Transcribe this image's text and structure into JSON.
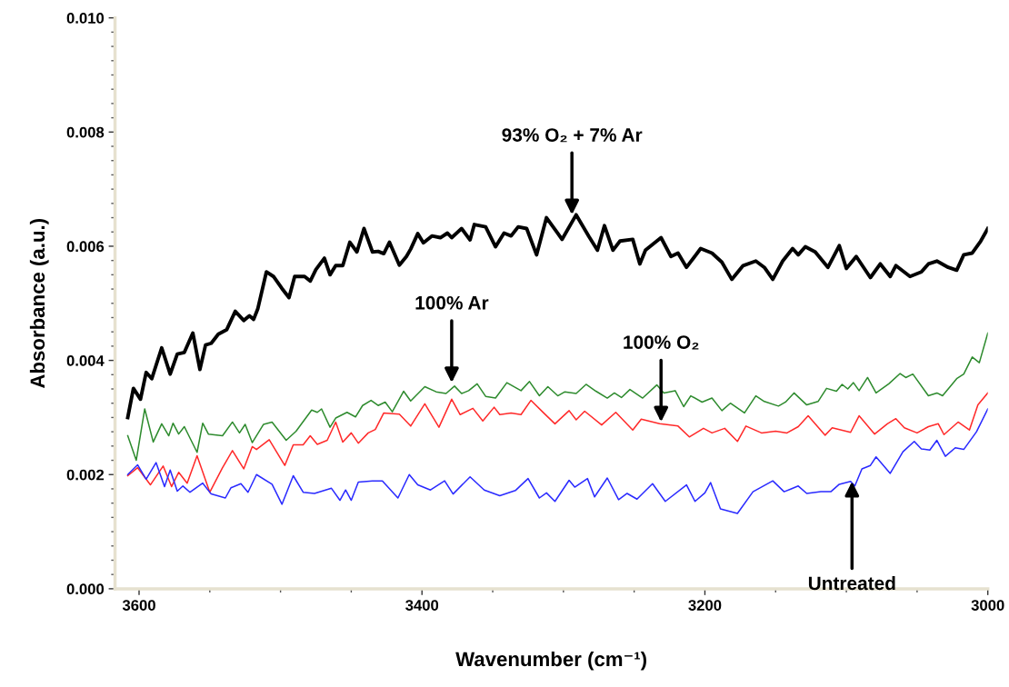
{
  "chart_data": {
    "type": "line",
    "xlabel": "Wavenumber (cm⁻¹)",
    "ylabel": "Absorbance (a.u.)",
    "xlim": [
      3617,
      3000
    ],
    "ylim": [
      0,
      0.01
    ],
    "xticks": [
      3600,
      {
        "value": 3550,
        "label": null
      },
      {
        "value": 3500,
        "label": null
      },
      {
        "value": 3450,
        "label": null
      },
      3400,
      {
        "value": 3350,
        "label": null
      },
      {
        "value": 3300,
        "label": null
      },
      {
        "value": 3250,
        "label": null
      },
      3200,
      {
        "value": 3150,
        "label": null
      },
      {
        "value": 3100,
        "label": null
      },
      {
        "value": 3050,
        "label": null
      },
      3000
    ],
    "yticks": [
      {
        "value": 0,
        "label": "0.000"
      },
      {
        "value": 0.00025,
        "label": null
      },
      {
        "value": 0.0005,
        "label": null
      },
      {
        "value": 0.00075,
        "label": null
      },
      {
        "value": 0.001,
        "label": null
      },
      {
        "value": 0.00125,
        "label": null
      },
      {
        "value": 0.0015,
        "label": null
      },
      {
        "value": 0.00175,
        "label": null
      },
      {
        "value": 0.002,
        "label": "0.002"
      },
      {
        "value": 0.00225,
        "label": null
      },
      {
        "value": 0.0025,
        "label": null
      },
      {
        "value": 0.00275,
        "label": null
      },
      {
        "value": 0.003,
        "label": null
      },
      {
        "value": 0.00325,
        "label": null
      },
      {
        "value": 0.0035,
        "label": null
      },
      {
        "value": 0.00375,
        "label": null
      },
      {
        "value": 0.004,
        "label": "0.004"
      },
      {
        "value": 0.00425,
        "label": null
      },
      {
        "value": 0.0045,
        "label": null
      },
      {
        "value": 0.00475,
        "label": null
      },
      {
        "value": 0.005,
        "label": null
      },
      {
        "value": 0.00525,
        "label": null
      },
      {
        "value": 0.0055,
        "label": null
      },
      {
        "value": 0.00575,
        "label": null
      },
      {
        "value": 0.006,
        "label": "0.006"
      },
      {
        "value": 0.00625,
        "label": null
      },
      {
        "value": 0.0065,
        "label": null
      },
      {
        "value": 0.00675,
        "label": null
      },
      {
        "value": 0.007,
        "label": null
      },
      {
        "value": 0.00725,
        "label": null
      },
      {
        "value": 0.0075,
        "label": null
      },
      {
        "value": 0.00775,
        "label": null
      },
      {
        "value": 0.008,
        "label": "0.008"
      },
      {
        "value": 0.00825,
        "label": null
      },
      {
        "value": 0.0085,
        "label": null
      },
      {
        "value": 0.00875,
        "label": null
      },
      {
        "value": 0.009,
        "label": null
      },
      {
        "value": 0.00925,
        "label": null
      },
      {
        "value": 0.0095,
        "label": null
      },
      {
        "value": 0.00975,
        "label": null
      },
      {
        "value": 0.01,
        "label": "0.010"
      }
    ],
    "grid": false,
    "legend": false,
    "marker": "none",
    "line_style": "solid",
    "annotations": [
      {
        "text": "93% O₂ + 7% Ar",
        "x": 3294,
        "y": 0.00655
      },
      {
        "text": "100% Ar",
        "x": 3379,
        "y": 0.00361
      },
      {
        "text": "100% O₂",
        "x": 3231,
        "y": 0.00292
      },
      {
        "text": "Untreated",
        "x": 3096,
        "y": 0.00188
      }
    ],
    "series": [
      {
        "color": "#000000",
        "x": [
          3608,
          3604,
          3599,
          3595,
          3591,
          3584,
          3578,
          3573,
          3568,
          3562,
          3557,
          3553,
          3549,
          3544,
          3538,
          3532,
          3526,
          3522,
          3519,
          3516,
          3510,
          3505,
          3499,
          3494,
          3490,
          3483,
          3479,
          3475,
          3469,
          3465,
          3461,
          3456,
          3451,
          3446,
          3441,
          3435,
          3431,
          3427,
          3423,
          3416,
          3411,
          3408,
          3403,
          3399,
          3393,
          3387,
          3382,
          3379,
          3372,
          3366,
          3363,
          3355,
          3348,
          3342,
          3337,
          3332,
          3326,
          3319,
          3312,
          3305,
          3301,
          3291,
          3282,
          3276,
          3271,
          3265,
          3260,
          3251,
          3246,
          3242,
          3231,
          3224,
          3219,
          3213,
          3203,
          3195,
          3188,
          3181,
          3173,
          3164,
          3158,
          3152,
          3145,
          3138,
          3134,
          3129,
          3122,
          3113,
          3105,
          3100,
          3093,
          3083,
          3076,
          3069,
          3065,
          3055,
          3047,
          3042,
          3036,
          3028,
          3022,
          3017,
          3011,
          3005,
          3000
        ],
        "values": [
          0.003,
          0.00351,
          0.00332,
          0.00379,
          0.00368,
          0.00422,
          0.00376,
          0.00411,
          0.00414,
          0.00448,
          0.00384,
          0.00427,
          0.0043,
          0.00446,
          0.00454,
          0.00486,
          0.0047,
          0.00478,
          0.00472,
          0.00491,
          0.00555,
          0.00547,
          0.00526,
          0.0051,
          0.00547,
          0.00547,
          0.00539,
          0.00559,
          0.00579,
          0.0055,
          0.00566,
          0.00566,
          0.00607,
          0.0059,
          0.00631,
          0.0059,
          0.00591,
          0.00587,
          0.00607,
          0.00567,
          0.00582,
          0.00595,
          0.00622,
          0.00606,
          0.00618,
          0.00615,
          0.00623,
          0.00615,
          0.00631,
          0.00611,
          0.00638,
          0.00634,
          0.00599,
          0.00623,
          0.00618,
          0.00634,
          0.00631,
          0.00585,
          0.0065,
          0.00626,
          0.00612,
          0.00655,
          0.00617,
          0.00593,
          0.00636,
          0.00593,
          0.00609,
          0.00612,
          0.00569,
          0.00593,
          0.00615,
          0.00582,
          0.00588,
          0.00563,
          0.00596,
          0.00588,
          0.00572,
          0.00542,
          0.00566,
          0.00574,
          0.00563,
          0.00542,
          0.00574,
          0.00596,
          0.00585,
          0.00599,
          0.0059,
          0.00563,
          0.00601,
          0.00561,
          0.00582,
          0.00545,
          0.00569,
          0.00547,
          0.00566,
          0.00547,
          0.00555,
          0.00569,
          0.00574,
          0.00563,
          0.00558,
          0.00585,
          0.00588,
          0.00609,
          0.00631
        ]
      },
      {
        "color": "#2e8b2e",
        "x": [
          3608,
          3602,
          3596,
          3590,
          3584,
          3579,
          3576,
          3572,
          3568,
          3559,
          3555,
          3551,
          3541,
          3534,
          3529,
          3525,
          3520,
          3512,
          3506,
          3496,
          3489,
          3478,
          3474,
          3471,
          3465,
          3461,
          3453,
          3447,
          3442,
          3436,
          3431,
          3426,
          3421,
          3413,
          3408,
          3398,
          3390,
          3383,
          3377,
          3372,
          3367,
          3361,
          3355,
          3348,
          3340,
          3330,
          3324,
          3317,
          3311,
          3304,
          3299,
          3291,
          3284,
          3277,
          3269,
          3264,
          3259,
          3253,
          3244,
          3234,
          3229,
          3221,
          3215,
          3210,
          3202,
          3195,
          3188,
          3182,
          3172,
          3164,
          3158,
          3148,
          3143,
          3137,
          3128,
          3120,
          3114,
          3107,
          3103,
          3099,
          3095,
          3091,
          3085,
          3079,
          3070,
          3062,
          3058,
          3053,
          3042,
          3036,
          3032,
          3022,
          3017,
          3011,
          3006,
          3000
        ],
        "values": [
          0.00268,
          0.00225,
          0.00315,
          0.00257,
          0.00289,
          0.00268,
          0.0029,
          0.00271,
          0.00284,
          0.00239,
          0.0029,
          0.00271,
          0.00268,
          0.00292,
          0.00273,
          0.00288,
          0.00256,
          0.00288,
          0.00292,
          0.0026,
          0.00276,
          0.00313,
          0.00309,
          0.00315,
          0.00283,
          0.00299,
          0.00309,
          0.00301,
          0.00321,
          0.0033,
          0.00321,
          0.00327,
          0.0031,
          0.00346,
          0.00329,
          0.00354,
          0.00345,
          0.00342,
          0.00355,
          0.00342,
          0.00347,
          0.00359,
          0.00337,
          0.00334,
          0.00361,
          0.00347,
          0.00363,
          0.00338,
          0.00354,
          0.00338,
          0.00345,
          0.00342,
          0.00358,
          0.00346,
          0.00334,
          0.00343,
          0.00335,
          0.00349,
          0.00334,
          0.00357,
          0.00343,
          0.00347,
          0.00319,
          0.00338,
          0.00327,
          0.00334,
          0.00312,
          0.00325,
          0.00308,
          0.00338,
          0.00328,
          0.0032,
          0.00327,
          0.00343,
          0.00322,
          0.00328,
          0.00351,
          0.00346,
          0.00358,
          0.0035,
          0.00361,
          0.00347,
          0.0037,
          0.00343,
          0.00359,
          0.00377,
          0.0037,
          0.00376,
          0.00338,
          0.00343,
          0.00338,
          0.00368,
          0.00376,
          0.00406,
          0.00396,
          0.00448
        ]
      },
      {
        "color": "#ff2a2a",
        "x": [
          3608,
          3601,
          3592,
          3583,
          3577,
          3572,
          3566,
          3559,
          3550,
          3541,
          3534,
          3526,
          3520,
          3517,
          3508,
          3497,
          3491,
          3484,
          3479,
          3474,
          3467,
          3461,
          3456,
          3450,
          3445,
          3438,
          3433,
          3427,
          3416,
          3408,
          3398,
          3388,
          3379,
          3373,
          3364,
          3357,
          3349,
          3345,
          3337,
          3330,
          3323,
          3314,
          3306,
          3296,
          3291,
          3285,
          3273,
          3263,
          3251,
          3245,
          3232,
          3219,
          3211,
          3201,
          3195,
          3186,
          3177,
          3171,
          3160,
          3150,
          3142,
          3134,
          3127,
          3115,
          3110,
          3097,
          3091,
          3080,
          3071,
          3065,
          3059,
          3050,
          3042,
          3035,
          3031,
          3021,
          3013,
          3007,
          3000
        ],
        "values": [
          0.00198,
          0.00212,
          0.00182,
          0.00215,
          0.00179,
          0.00204,
          0.00185,
          0.00233,
          0.00169,
          0.00212,
          0.00242,
          0.0021,
          0.00249,
          0.00244,
          0.00261,
          0.00216,
          0.00252,
          0.00252,
          0.00268,
          0.00253,
          0.0026,
          0.00292,
          0.00257,
          0.00273,
          0.00255,
          0.00273,
          0.00279,
          0.00308,
          0.00306,
          0.00285,
          0.00324,
          0.00283,
          0.00332,
          0.00305,
          0.00316,
          0.00294,
          0.00318,
          0.00305,
          0.00308,
          0.00305,
          0.0033,
          0.00308,
          0.00289,
          0.00312,
          0.00296,
          0.00311,
          0.00287,
          0.00309,
          0.00278,
          0.00297,
          0.00289,
          0.00285,
          0.00266,
          0.00281,
          0.00273,
          0.00281,
          0.00258,
          0.00285,
          0.00273,
          0.00276,
          0.00273,
          0.00284,
          0.00303,
          0.00269,
          0.00282,
          0.00274,
          0.00303,
          0.00271,
          0.00289,
          0.00298,
          0.00282,
          0.00273,
          0.00284,
          0.00289,
          0.0027,
          0.00292,
          0.00278,
          0.00322,
          0.00343
        ]
      },
      {
        "color": "#2a2aff",
        "x": [
          3608,
          3601,
          3595,
          3588,
          3582,
          3578,
          3573,
          3569,
          3564,
          3555,
          3549,
          3539,
          3535,
          3528,
          3523,
          3517,
          3506,
          3499,
          3491,
          3484,
          3476,
          3464,
          3458,
          3454,
          3450,
          3445,
          3435,
          3428,
          3417,
          3409,
          3403,
          3394,
          3384,
          3378,
          3366,
          3356,
          3345,
          3334,
          3325,
          3317,
          3312,
          3306,
          3296,
          3292,
          3283,
          3278,
          3269,
          3261,
          3255,
          3248,
          3237,
          3228,
          3213,
          3207,
          3200,
          3196,
          3189,
          3177,
          3166,
          3152,
          3144,
          3139,
          3134,
          3128,
          3118,
          3111,
          3105,
          3097,
          3094,
          3089,
          3083,
          3079,
          3069,
          3060,
          3052,
          3047,
          3041,
          3036,
          3030,
          3023,
          3017,
          3008,
          3000
        ],
        "values": [
          0.002,
          0.00217,
          0.00192,
          0.00221,
          0.00179,
          0.00208,
          0.00171,
          0.0018,
          0.00169,
          0.00185,
          0.00166,
          0.00159,
          0.00177,
          0.00184,
          0.00169,
          0.002,
          0.00183,
          0.00148,
          0.00198,
          0.00169,
          0.00167,
          0.00176,
          0.00155,
          0.00173,
          0.00155,
          0.00187,
          0.00189,
          0.00189,
          0.00159,
          0.002,
          0.00182,
          0.00173,
          0.00189,
          0.00166,
          0.00196,
          0.00173,
          0.00163,
          0.00172,
          0.00193,
          0.00159,
          0.00168,
          0.00153,
          0.0019,
          0.00178,
          0.00193,
          0.00161,
          0.00194,
          0.00156,
          0.00167,
          0.00157,
          0.00184,
          0.00153,
          0.00182,
          0.00153,
          0.00168,
          0.00186,
          0.0014,
          0.00132,
          0.0017,
          0.00189,
          0.0017,
          0.00175,
          0.0018,
          0.00167,
          0.0017,
          0.0017,
          0.00183,
          0.00188,
          0.0018,
          0.0021,
          0.00216,
          0.00231,
          0.00202,
          0.0024,
          0.00258,
          0.00245,
          0.00243,
          0.0026,
          0.00232,
          0.00247,
          0.00244,
          0.00275,
          0.00315
        ]
      }
    ]
  }
}
